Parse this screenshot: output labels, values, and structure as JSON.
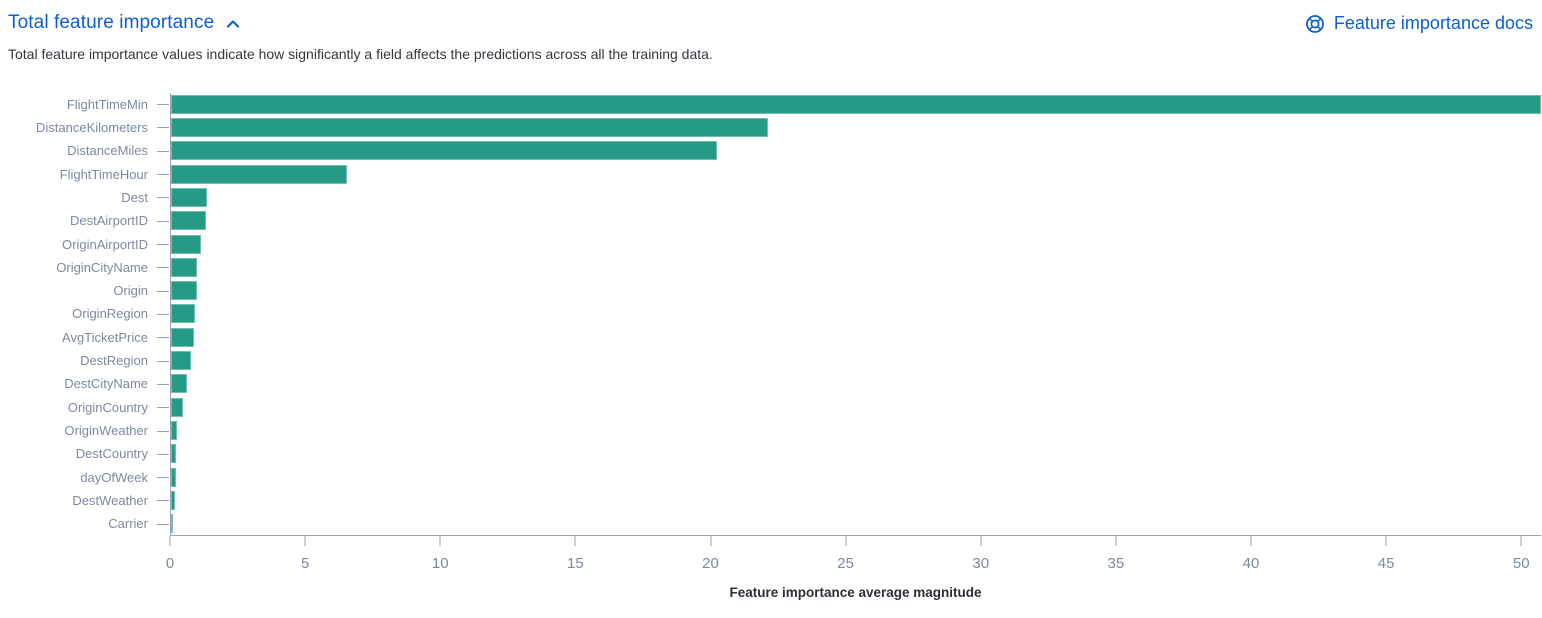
{
  "header": {
    "title": "Total feature importance",
    "collapse_icon": "chevron-up-icon",
    "docs_link": {
      "label": "Feature importance docs",
      "icon": "help-docs-icon"
    }
  },
  "description": "Total feature importance values indicate how significantly a field affects the predictions across all the training data.",
  "colors": {
    "bar": "#259a85",
    "link": "#0b5fd0",
    "axis_line": "#98a2b3",
    "tick_label": "#7d89a1",
    "body_text": "#343741",
    "axis_title": "#2b2f36"
  },
  "chart_data": {
    "type": "bar",
    "orientation": "horizontal",
    "title": "Total feature importance",
    "xlabel": "Feature importance average magnitude",
    "ylabel": "",
    "xlim": [
      0,
      50.73
    ],
    "xticks": [
      0,
      5,
      10,
      15,
      20,
      25,
      30,
      35,
      40,
      45,
      50
    ],
    "grid": false,
    "legend": false,
    "categories": [
      "FlightTimeMin",
      "DistanceKilometers",
      "DistanceMiles",
      "FlightTimeHour",
      "Dest",
      "DestAirportID",
      "OriginAirportID",
      "OriginCityName",
      "Origin",
      "OriginRegion",
      "AvgTicketPrice",
      "DestRegion",
      "DestCityName",
      "OriginCountry",
      "OriginWeather",
      "DestCountry",
      "dayOfWeek",
      "DestWeather",
      "Carrier"
    ],
    "values": [
      50.73,
      22.1,
      20.2,
      6.5,
      1.34,
      1.3,
      1.12,
      0.97,
      0.95,
      0.9,
      0.85,
      0.73,
      0.6,
      0.43,
      0.21,
      0.19,
      0.18,
      0.16,
      0.07
    ]
  }
}
